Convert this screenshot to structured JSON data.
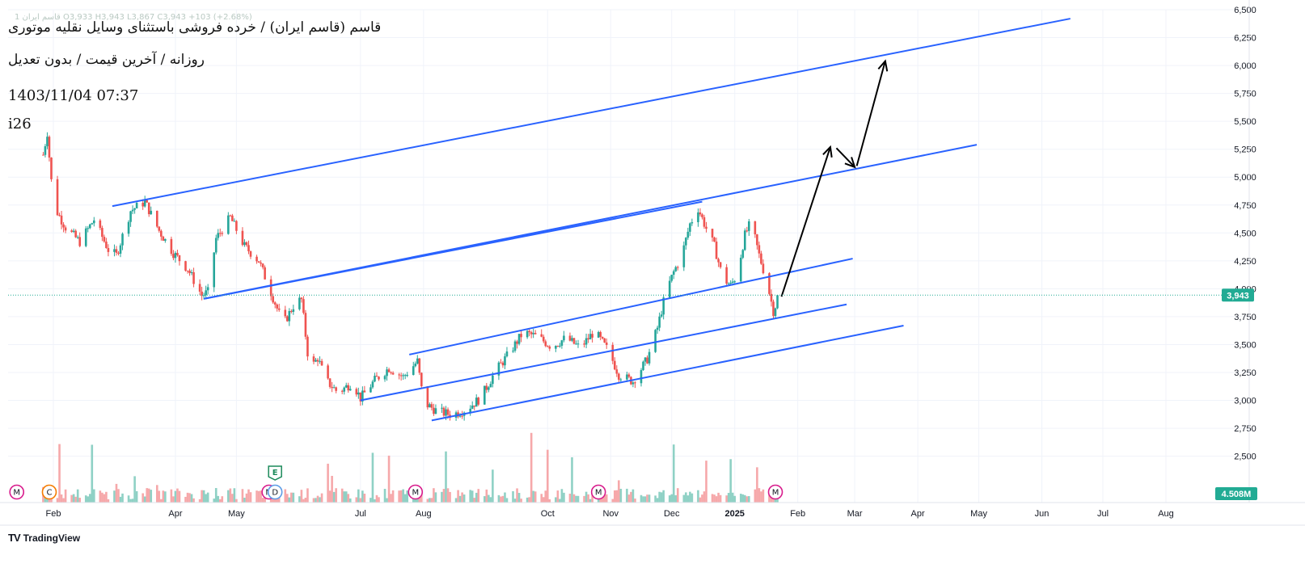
{
  "overlay": {
    "title": "قاسم (قاسم ایران) / خرده فروشی باستثنای وسایل نقلیه موتوری",
    "subtitle": "روزانه / آخرین قیمت / بدون تعدیل",
    "datetime": "1403/11/04 07:37",
    "tag": "i26",
    "ohlc_line": "1 قاسم ایران  O3,933  H3,943  L3,867  C3,943  +103 (+2.68%)"
  },
  "brand": "TradingView",
  "colors": {
    "up": "#26a69a",
    "down": "#ef5350",
    "trendline": "#2962ff",
    "arrow": "#000000",
    "price_badge": "#22ab94",
    "volume_up": "#8fd1c5",
    "volume_down": "#f6a8aa"
  },
  "chart_data": {
    "type": "candlestick",
    "title": "",
    "xlabel": "",
    "ylabel": "",
    "y_ticks": [
      "6,500",
      "6,250",
      "6,000",
      "5,750",
      "5,500",
      "5,250",
      "5,000",
      "4,750",
      "4,500",
      "4,250",
      "4,000",
      "3,750",
      "3,500",
      "3,250",
      "3,000",
      "2,750",
      "2,500"
    ],
    "ylim": [
      2280,
      6500
    ],
    "x_ticks": [
      {
        "label": "Feb",
        "date": "2024-02-01"
      },
      {
        "label": "Apr",
        "date": "2024-04-01"
      },
      {
        "label": "May",
        "date": "2024-05-01"
      },
      {
        "label": "Jul",
        "date": "2024-07-01"
      },
      {
        "label": "Aug",
        "date": "2024-08-01"
      },
      {
        "label": "Oct",
        "date": "2024-10-01"
      },
      {
        "label": "Nov",
        "date": "2024-11-01"
      },
      {
        "label": "Dec",
        "date": "2024-12-01"
      },
      {
        "label": "2025",
        "date": "2025-01-01",
        "bold": true
      },
      {
        "label": "Feb",
        "date": "2025-02-01"
      },
      {
        "label": "Mar",
        "date": "2025-03-01"
      },
      {
        "label": "Apr",
        "date": "2025-04-01"
      },
      {
        "label": "May",
        "date": "2025-05-01"
      },
      {
        "label": "Jun",
        "date": "2025-06-01"
      },
      {
        "label": "Jul",
        "date": "2025-07-01"
      },
      {
        "label": "Aug",
        "date": "2025-08-01"
      }
    ],
    "last_price": {
      "value": 3943,
      "label": "3,943"
    },
    "volume_label": "4.508M",
    "price_path": [
      [
        "2024-01-27",
        5200
      ],
      [
        "2024-01-29",
        5400
      ],
      [
        "2024-02-01",
        4750
      ],
      [
        "2024-02-07",
        4550
      ],
      [
        "2024-02-14",
        4420
      ],
      [
        "2024-02-21",
        4620
      ],
      [
        "2024-02-28",
        4350
      ],
      [
        "2024-03-03",
        4300
      ],
      [
        "2024-03-10",
        4700
      ],
      [
        "2024-03-17",
        4780
      ],
      [
        "2024-03-24",
        4520
      ],
      [
        "2024-03-31",
        4320
      ],
      [
        "2024-04-07",
        4180
      ],
      [
        "2024-04-14",
        3940
      ],
      [
        "2024-04-17",
        3970
      ],
      [
        "2024-04-21",
        4450
      ],
      [
        "2024-04-28",
        4640
      ],
      [
        "2024-05-05",
        4380
      ],
      [
        "2024-05-12",
        4250
      ],
      [
        "2024-05-19",
        3920
      ],
      [
        "2024-05-24",
        3680
      ],
      [
        "2024-05-30",
        3880
      ],
      [
        "2024-06-02",
        3900
      ],
      [
        "2024-06-06",
        3270
      ],
      [
        "2024-06-10",
        3380
      ],
      [
        "2024-06-14",
        3180
      ],
      [
        "2024-06-20",
        3070
      ],
      [
        "2024-06-27",
        3160
      ],
      [
        "2024-07-01",
        3020
      ],
      [
        "2024-07-08",
        3180
      ],
      [
        "2024-07-15",
        3290
      ],
      [
        "2024-07-22",
        3210
      ],
      [
        "2024-07-29",
        3350
      ],
      [
        "2024-08-01",
        2980
      ],
      [
        "2024-08-08",
        2900
      ],
      [
        "2024-08-15",
        2870
      ],
      [
        "2024-08-22",
        2920
      ],
      [
        "2024-08-29",
        3020
      ],
      [
        "2024-09-05",
        3250
      ],
      [
        "2024-09-12",
        3420
      ],
      [
        "2024-09-19",
        3610
      ],
      [
        "2024-09-26",
        3570
      ],
      [
        "2024-10-03",
        3480
      ],
      [
        "2024-10-10",
        3560
      ],
      [
        "2024-10-17",
        3470
      ],
      [
        "2024-10-24",
        3620
      ],
      [
        "2024-10-31",
        3440
      ],
      [
        "2024-11-05",
        3230
      ],
      [
        "2024-11-12",
        3170
      ],
      [
        "2024-11-19",
        3370
      ],
      [
        "2024-11-24",
        3650
      ],
      [
        "2024-11-28",
        3960
      ],
      [
        "2024-12-02",
        4150
      ],
      [
        "2024-12-06",
        4300
      ],
      [
        "2024-12-10",
        4580
      ],
      [
        "2024-12-14",
        4720
      ],
      [
        "2024-12-18",
        4540
      ],
      [
        "2024-12-22",
        4380
      ],
      [
        "2024-12-26",
        4100
      ],
      [
        "2024-12-30",
        4030
      ],
      [
        "2025-01-02",
        4120
      ],
      [
        "2025-01-06",
        4480
      ],
      [
        "2025-01-09",
        4600
      ],
      [
        "2025-01-13",
        4300
      ],
      [
        "2025-01-17",
        4050
      ],
      [
        "2025-01-20",
        3800
      ],
      [
        "2025-01-23",
        3943
      ]
    ],
    "trendlines": [
      {
        "name": "",
        "from": [
          "2024-03-01",
          4740
        ],
        "to": [
          "2025-06-15",
          6420
        ]
      },
      {
        "name": "",
        "from": [
          "2024-04-15",
          3910
        ],
        "to": [
          "2025-04-30",
          5290
        ]
      },
      {
        "name": "",
        "from": [
          "2024-04-15",
          3910
        ],
        "to": [
          "2024-12-16",
          4780
        ]
      },
      {
        "name": "",
        "from": [
          "2024-07-25",
          3410
        ],
        "to": [
          "2025-02-28",
          4270
        ]
      },
      {
        "name": "",
        "from": [
          "2024-07-01",
          3000
        ],
        "to": [
          "2025-02-25",
          3860
        ]
      },
      {
        "name": "",
        "from": [
          "2024-08-05",
          2820
        ],
        "to": [
          "2025-03-25",
          3670
        ]
      }
    ],
    "projection_arrows": [
      {
        "from": [
          "2025-01-24",
          3930
        ],
        "to": [
          "2025-02-17",
          5270
        ]
      },
      {
        "from": [
          "2025-02-20",
          5260
        ],
        "to": [
          "2025-03-01",
          5090
        ]
      },
      {
        "from": [
          "2025-03-02",
          5100
        ],
        "to": [
          "2025-03-16",
          6040
        ]
      }
    ],
    "event_markers": [
      {
        "date": "2024-01-14",
        "label": "M",
        "color": "#d81b8c"
      },
      {
        "date": "2024-01-30",
        "label": "C",
        "color": "#f57c00"
      },
      {
        "date": "2024-05-17",
        "label": "M",
        "color": "#d81b8c"
      },
      {
        "date": "2024-05-20",
        "label": "D",
        "color": "#5c9ce6"
      },
      {
        "date": "2024-05-20",
        "label": "E",
        "color": "#1b8a5a",
        "stacked": true
      },
      {
        "date": "2024-07-28",
        "label": "M",
        "color": "#d81b8c"
      },
      {
        "date": "2024-10-26",
        "label": "M",
        "color": "#d81b8c"
      },
      {
        "date": "2025-01-21",
        "label": "M",
        "color": "#d81b8c"
      }
    ]
  }
}
